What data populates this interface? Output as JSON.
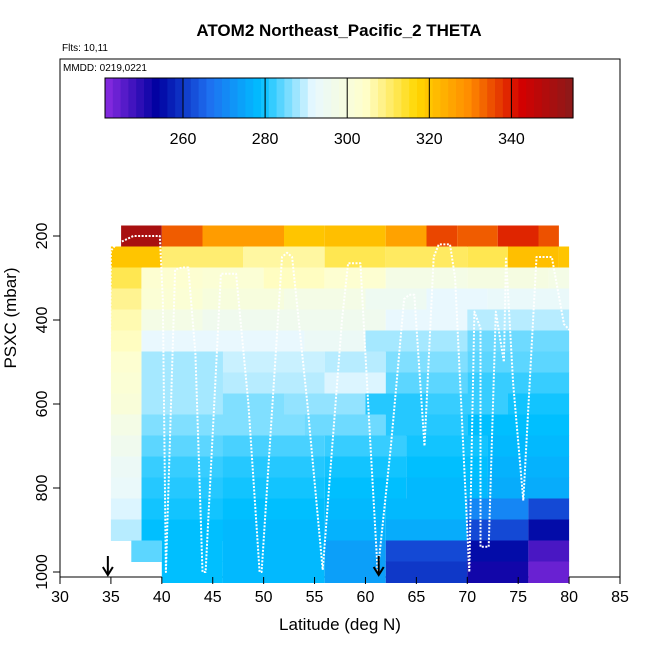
{
  "chart_data": {
    "type": "heatmap",
    "title": "ATOM2 Northeast_Pacific_2 THETA",
    "subtitle_flights": "Flts: 10,11",
    "subtitle_dates": "MMDD: 0219,0221",
    "xlabel": "Latitude (deg N)",
    "ylabel": "PSXC (mbar)",
    "xlim": [
      30,
      85
    ],
    "ylim": [
      1000,
      0
    ],
    "xticks": [
      30,
      35,
      40,
      45,
      50,
      55,
      60,
      65,
      70,
      75,
      80,
      85
    ],
    "yticks": [
      200,
      400,
      600,
      800,
      1000
    ],
    "colorbar": {
      "range": [
        241,
        355
      ],
      "ticks": [
        260,
        280,
        300,
        320,
        340
      ],
      "colors": [
        "#8a2be2",
        "#0000a0",
        "#1e6ff0",
        "#00bfff",
        "#e8f8ff",
        "#ffffcc",
        "#ffd700",
        "#ff8c00",
        "#d40000",
        "#8b1a1a"
      ]
    },
    "arrows_latitude": [
      34.7,
      61.3
    ],
    "pressure_bands": [
      {
        "p": 200,
        "segments": [
          [
            36,
            40,
            350
          ],
          [
            40,
            44,
            334
          ],
          [
            44,
            52,
            327
          ],
          [
            52,
            56,
            320
          ],
          [
            56,
            62,
            321
          ],
          [
            62,
            66,
            326
          ],
          [
            66,
            69,
            336
          ],
          [
            69,
            73,
            334
          ],
          [
            73,
            77,
            339
          ],
          [
            77,
            79,
            335
          ]
        ]
      },
      {
        "p": 250,
        "segments": [
          [
            35,
            40,
            320
          ],
          [
            40,
            48,
            310
          ],
          [
            48,
            56,
            307
          ],
          [
            56,
            62,
            312
          ],
          [
            62,
            70,
            311
          ],
          [
            70,
            74,
            312
          ],
          [
            74,
            79,
            321
          ],
          [
            79,
            80,
            320
          ]
        ]
      },
      {
        "p": 300,
        "segments": [
          [
            35,
            38,
            312
          ],
          [
            38,
            44,
            303
          ],
          [
            44,
            50,
            302
          ],
          [
            50,
            56,
            305
          ],
          [
            56,
            62,
            303
          ],
          [
            62,
            70,
            298
          ],
          [
            70,
            78,
            299
          ],
          [
            78,
            80,
            298
          ]
        ]
      },
      {
        "p": 350,
        "segments": [
          [
            35,
            38,
            308
          ],
          [
            38,
            44,
            302
          ],
          [
            44,
            52,
            300
          ],
          [
            52,
            60,
            298
          ],
          [
            60,
            66,
            295
          ],
          [
            66,
            72,
            292
          ],
          [
            72,
            80,
            293
          ]
        ]
      },
      {
        "p": 400,
        "segments": [
          [
            35,
            38,
            306
          ],
          [
            38,
            44,
            298
          ],
          [
            44,
            52,
            296
          ],
          [
            52,
            62,
            296
          ],
          [
            62,
            70,
            292
          ],
          [
            70,
            80,
            289
          ]
        ]
      },
      {
        "p": 450,
        "segments": [
          [
            35,
            38,
            305
          ],
          [
            38,
            46,
            292
          ],
          [
            46,
            54,
            292
          ],
          [
            54,
            60,
            294
          ],
          [
            60,
            70,
            288
          ],
          [
            70,
            80,
            285
          ]
        ]
      },
      {
        "p": 500,
        "segments": [
          [
            35,
            38,
            303
          ],
          [
            38,
            46,
            288
          ],
          [
            46,
            56,
            290
          ],
          [
            56,
            62,
            289
          ],
          [
            62,
            70,
            286
          ],
          [
            70,
            80,
            284
          ]
        ]
      },
      {
        "p": 550,
        "segments": [
          [
            35,
            38,
            302
          ],
          [
            38,
            46,
            288
          ],
          [
            46,
            56,
            289
          ],
          [
            56,
            62,
            291
          ],
          [
            62,
            70,
            284
          ],
          [
            70,
            80,
            282
          ]
        ]
      },
      {
        "p": 600,
        "segments": [
          [
            35,
            38,
            301
          ],
          [
            38,
            46,
            288
          ],
          [
            46,
            52,
            286
          ],
          [
            52,
            60,
            287
          ],
          [
            60,
            66,
            281
          ],
          [
            66,
            74,
            282
          ],
          [
            74,
            80,
            280
          ]
        ]
      },
      {
        "p": 650,
        "segments": [
          [
            35,
            38,
            298
          ],
          [
            38,
            46,
            286
          ],
          [
            46,
            54,
            286
          ],
          [
            54,
            62,
            285
          ],
          [
            62,
            70,
            281
          ],
          [
            70,
            80,
            279
          ]
        ]
      },
      {
        "p": 700,
        "segments": [
          [
            35,
            38,
            296
          ],
          [
            38,
            46,
            284
          ],
          [
            46,
            56,
            283
          ],
          [
            56,
            64,
            282
          ],
          [
            64,
            72,
            280
          ],
          [
            72,
            80,
            278
          ]
        ]
      },
      {
        "p": 750,
        "segments": [
          [
            35,
            38,
            294
          ],
          [
            38,
            46,
            282
          ],
          [
            46,
            56,
            281
          ],
          [
            56,
            64,
            280
          ],
          [
            64,
            72,
            279
          ],
          [
            72,
            80,
            277
          ]
        ]
      },
      {
        "p": 800,
        "segments": [
          [
            35,
            38,
            293
          ],
          [
            38,
            46,
            281
          ],
          [
            46,
            56,
            280
          ],
          [
            56,
            64,
            279
          ],
          [
            64,
            72,
            278
          ],
          [
            72,
            80,
            276
          ]
        ]
      },
      {
        "p": 850,
        "segments": [
          [
            35,
            38,
            291
          ],
          [
            38,
            46,
            280
          ],
          [
            46,
            56,
            279
          ],
          [
            56,
            62,
            278
          ],
          [
            62,
            70,
            278
          ],
          [
            70,
            76,
            270
          ],
          [
            76,
            80,
            262
          ]
        ]
      },
      {
        "p": 900,
        "segments": [
          [
            35,
            38,
            289
          ],
          [
            38,
            46,
            279
          ],
          [
            46,
            56,
            278
          ],
          [
            56,
            62,
            277
          ],
          [
            62,
            70,
            276
          ],
          [
            70,
            76,
            262
          ],
          [
            76,
            80,
            255
          ]
        ]
      },
      {
        "p": 950,
        "segments": [
          [
            37,
            40,
            284
          ],
          [
            40,
            46,
            279
          ],
          [
            46,
            56,
            278
          ],
          [
            56,
            62,
            274
          ],
          [
            62,
            70,
            262
          ],
          [
            70,
            76,
            255
          ],
          [
            76,
            80,
            247
          ]
        ]
      },
      {
        "p": 1000,
        "segments": [
          [
            40,
            46,
            279
          ],
          [
            46,
            56,
            278
          ],
          [
            56,
            62,
            274
          ],
          [
            62,
            70,
            260
          ],
          [
            70,
            76,
            252
          ],
          [
            76,
            80,
            244
          ]
        ]
      }
    ],
    "flight_track": [
      [
        34.7,
        1000
      ],
      [
        35.0,
        235
      ],
      [
        35.5,
        220
      ],
      [
        37.2,
        200
      ],
      [
        39.8,
        200
      ],
      [
        40.1,
        350
      ],
      [
        40.4,
        1000
      ],
      [
        41.3,
        280
      ],
      [
        42.0,
        275
      ],
      [
        42.6,
        275
      ],
      [
        43.3,
        480
      ],
      [
        44.0,
        1000
      ],
      [
        44.3,
        1000
      ],
      [
        45.8,
        290
      ],
      [
        47.3,
        290
      ],
      [
        48.5,
        600
      ],
      [
        49.6,
        1000
      ],
      [
        49.8,
        1000
      ],
      [
        51.8,
        250
      ],
      [
        52.3,
        240
      ],
      [
        52.8,
        250
      ],
      [
        54.3,
        600
      ],
      [
        55.8,
        995
      ],
      [
        57.7,
        400
      ],
      [
        58.3,
        265
      ],
      [
        59.5,
        265
      ],
      [
        60.5,
        700
      ],
      [
        61.2,
        1000
      ],
      [
        62.5,
        700
      ],
      [
        63.8,
        350
      ],
      [
        64.3,
        340
      ],
      [
        64.8,
        340
      ],
      [
        65.8,
        700
      ],
      [
        66.7,
        250
      ],
      [
        67.2,
        220
      ],
      [
        68.3,
        220
      ],
      [
        68.8,
        300
      ],
      [
        70.2,
        1000
      ],
      [
        70.7,
        380
      ],
      [
        71.3,
        420
      ],
      [
        71.3,
        940
      ],
      [
        72.1,
        940
      ],
      [
        72.8,
        380
      ],
      [
        73.6,
        500
      ],
      [
        73.8,
        250
      ],
      [
        74.5,
        550
      ],
      [
        75.5,
        830
      ],
      [
        76.8,
        250
      ],
      [
        78.3,
        250
      ],
      [
        79.5,
        410
      ],
      [
        80.3,
        430
      ]
    ]
  }
}
